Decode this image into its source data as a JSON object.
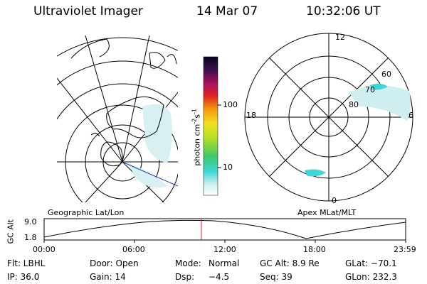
{
  "header": {
    "title": "Ultraviolet Imager",
    "date": "14 Mar 07",
    "time": "10:32:06 UT"
  },
  "colorbar": {
    "unit_label": "photon cm",
    "unit_sup1": "-2",
    "unit_mid": "s",
    "unit_sup2": "-1",
    "ticks": [
      "100",
      "10"
    ]
  },
  "polar_plot": {
    "mlt_labels": {
      "top": "12",
      "left": "18",
      "right": "6",
      "bottom": "0"
    },
    "lat_labels": [
      "60",
      "70",
      "80"
    ]
  },
  "map_labels": {
    "left": "Geographic Lat/Lon",
    "right": "Apex MLat/MLT"
  },
  "altitude_strip": {
    "ylabel": "GC Alt",
    "ticks": [
      "9.0",
      "1.8"
    ],
    "time_ticks": [
      "00:00",
      "06:00",
      "12:00",
      "18:00",
      "23:59"
    ]
  },
  "info": {
    "row1": {
      "filter": "Flt: LBHL",
      "door": "Door: Open",
      "mode_label": "Mode:",
      "mode_value": "Normal",
      "gc_alt": "GC Alt: 8.9 Re",
      "glat": "GLat: −70.1"
    },
    "row2": {
      "ip": "IP: 36.0",
      "gain": "Gain: 14",
      "dsp_label": "Dsp:",
      "dsp_value": "−4.5",
      "seq": "Seq: 39",
      "glon": "GLon: 232.3"
    }
  },
  "colors": {
    "current_time_marker": "#e02020",
    "auroral_cyan": "#3fd6d6",
    "auroral_pale": "#bfe8ec"
  }
}
